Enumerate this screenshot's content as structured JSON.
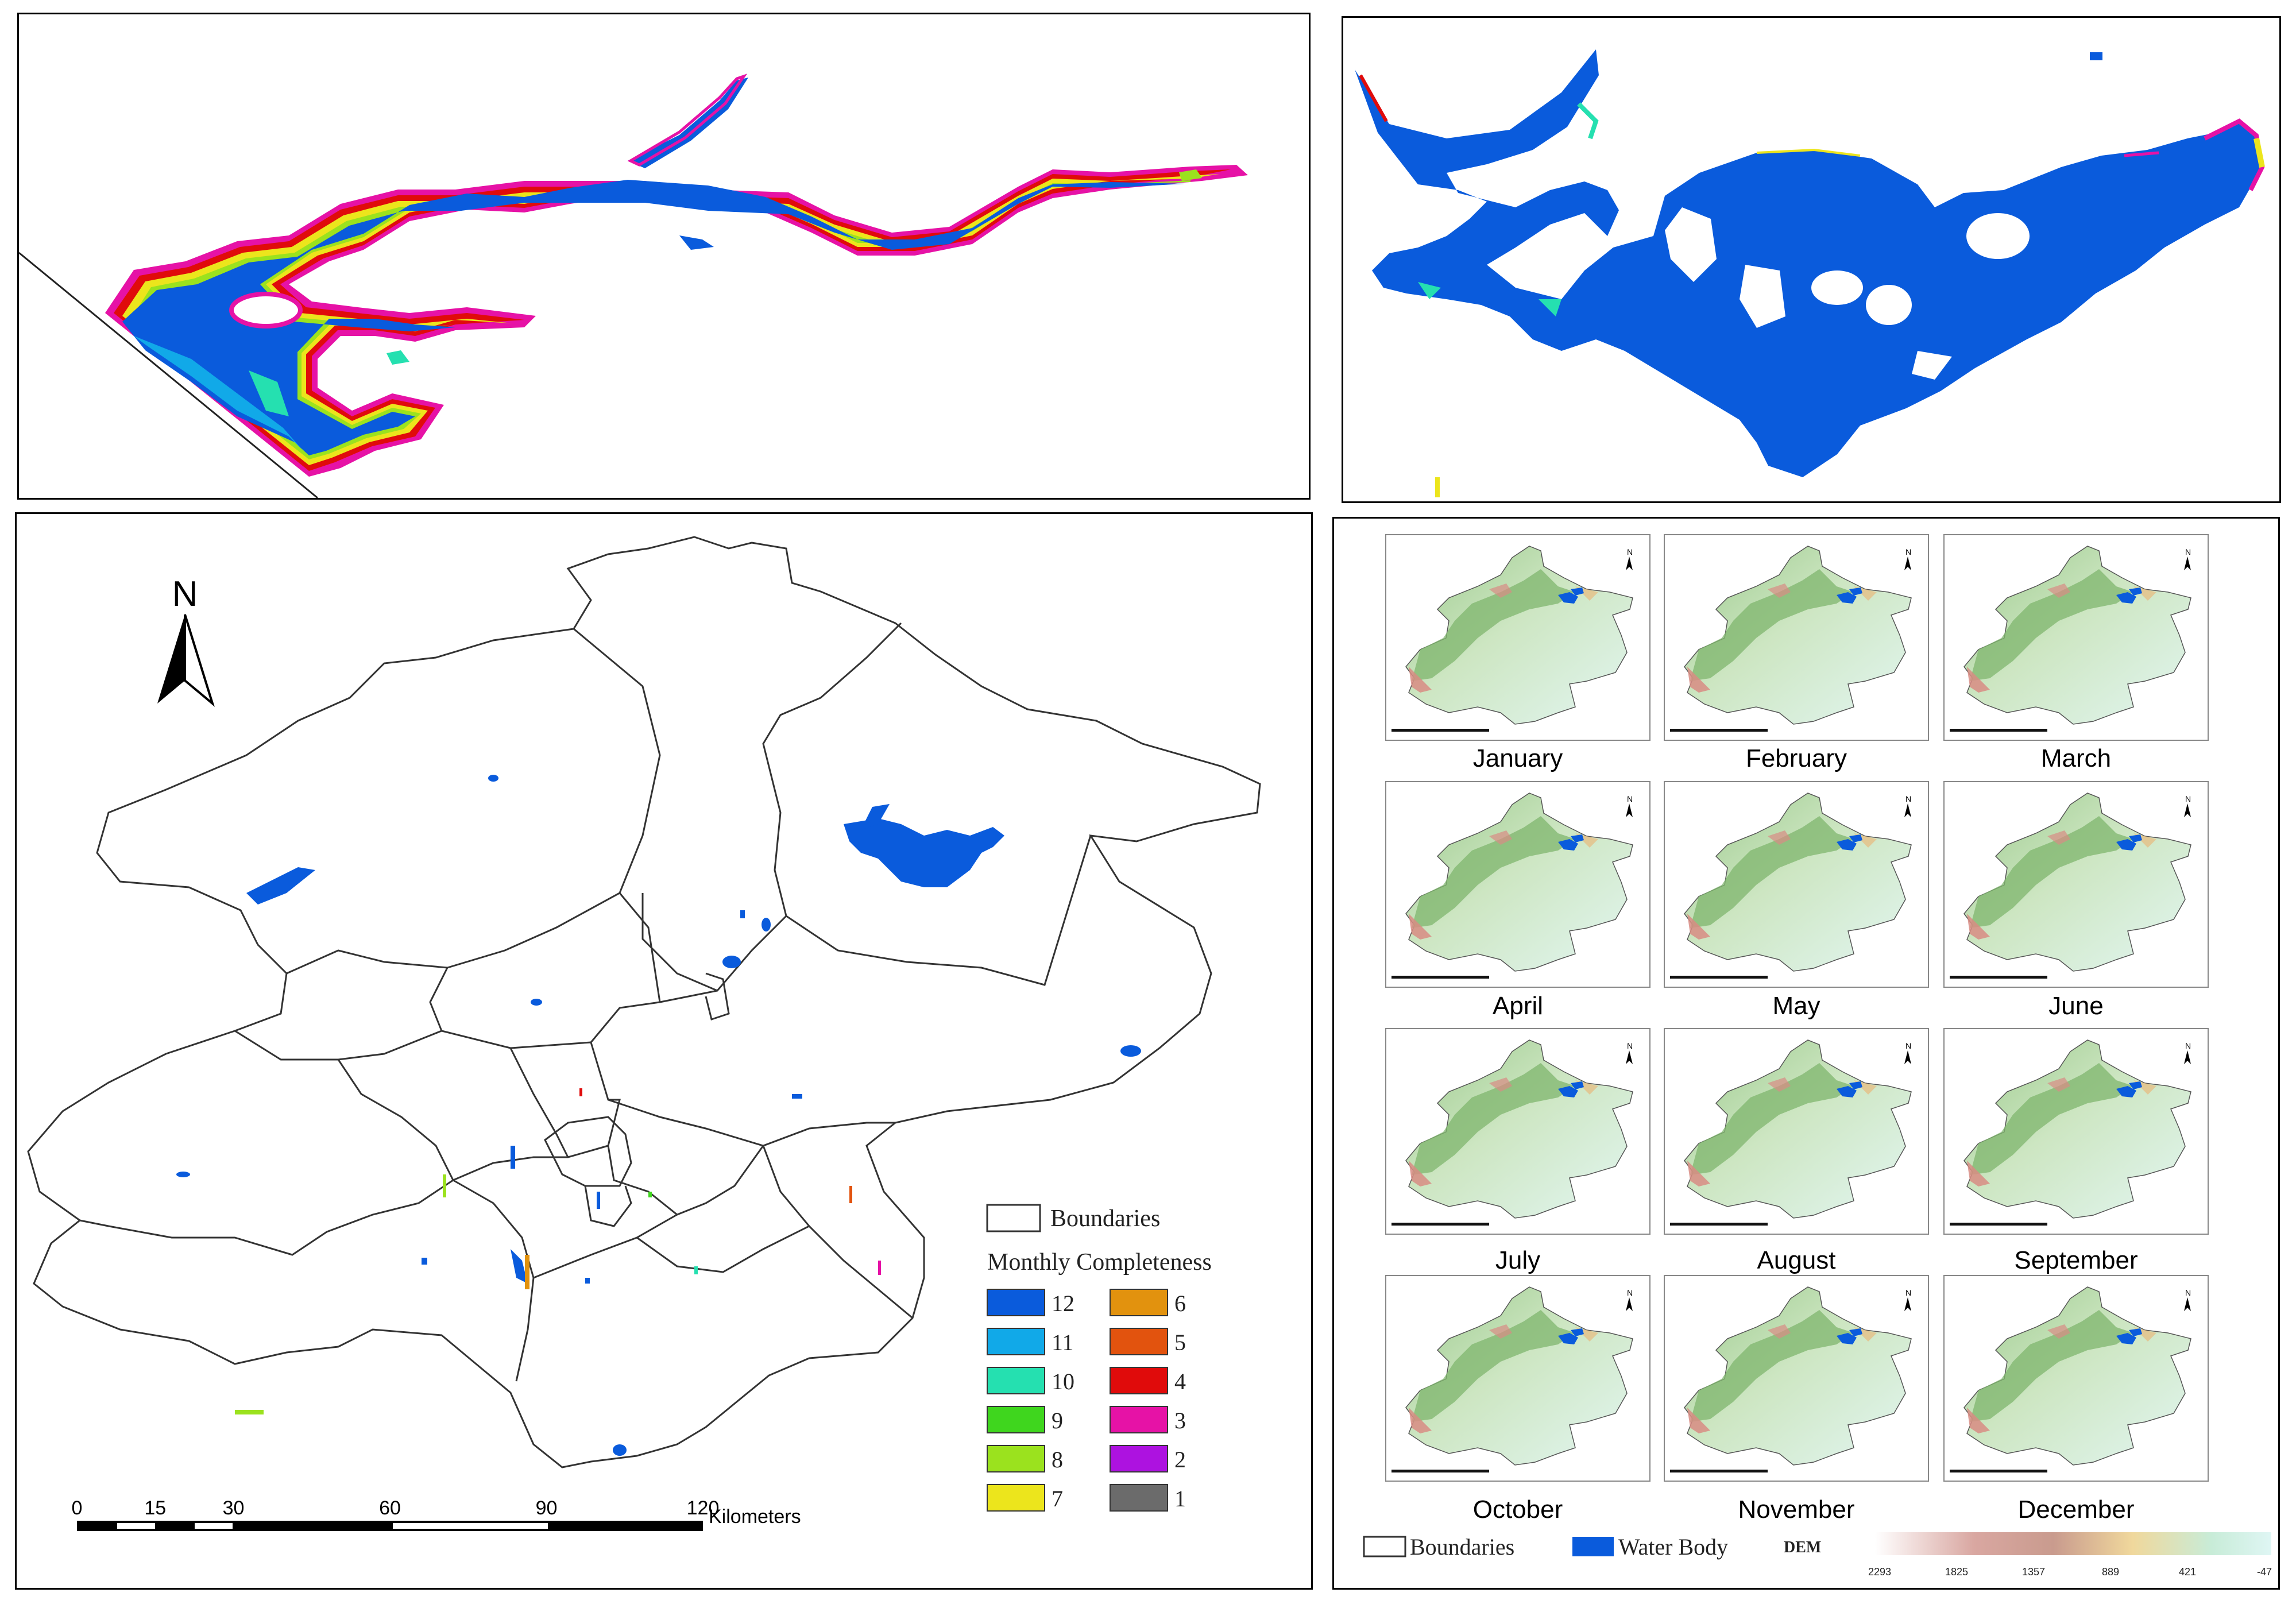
{
  "main_map": {
    "north_label": "N",
    "legend": {
      "boundaries_label": "Boundaries",
      "title": "Monthly Completeness",
      "classes": [
        {
          "value": "12",
          "color": "#0a5bdc"
        },
        {
          "value": "11",
          "color": "#11a9e8"
        },
        {
          "value": "10",
          "color": "#25e0b0"
        },
        {
          "value": "9",
          "color": "#3fd61e"
        },
        {
          "value": "8",
          "color": "#9be21e"
        },
        {
          "value": "7",
          "color": "#ece51c"
        },
        {
          "value": "6",
          "color": "#e2920e"
        },
        {
          "value": "5",
          "color": "#e2530e"
        },
        {
          "value": "4",
          "color": "#e00b0b"
        },
        {
          "value": "3",
          "color": "#e612a6"
        },
        {
          "value": "2",
          "color": "#ad12e0"
        },
        {
          "value": "1",
          "color": "#6b6b6b"
        }
      ]
    },
    "scale_bar": {
      "ticks": [
        "0",
        "15",
        "30",
        "60",
        "90",
        "120"
      ],
      "unit": "Kilometers"
    }
  },
  "monthly_grid": {
    "months": [
      "January",
      "February",
      "March",
      "April",
      "May",
      "June",
      "July",
      "August",
      "September",
      "October",
      "November",
      "December"
    ],
    "legend": {
      "boundaries_label": "Boundaries",
      "water_label": "Water Body",
      "dem_label": "DEM",
      "dem_ticks": [
        "2293",
        "1825",
        "1357",
        "889",
        "421",
        "-47"
      ]
    }
  },
  "colors": {
    "water": "#0a5bdc",
    "boundary": "#000000"
  }
}
